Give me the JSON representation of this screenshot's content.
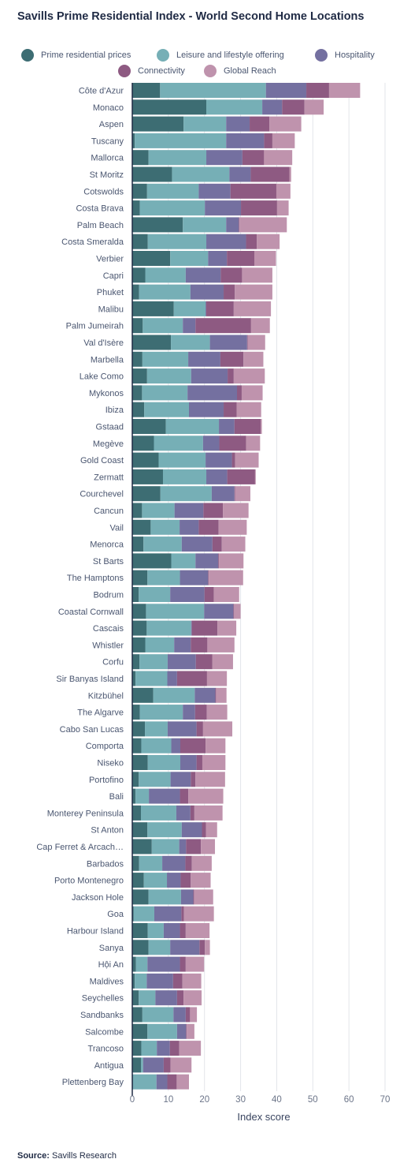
{
  "title": "Savills Prime Residential Index - World Second Home Locations",
  "source": {
    "label": "Source:",
    "text": "Savills Research"
  },
  "colors": {
    "Prime residential prices": "#3d6d73",
    "Leisure and lifestyle offering": "#76afb6",
    "Hospitality": "#7470a0",
    "Connectivity": "#8e5a82",
    "Global Reach": "#bf93ad"
  },
  "chart_data": {
    "type": "bar",
    "orientation": "horizontal",
    "stacked": true,
    "title": "Savills Prime Residential Index - World Second Home Locations",
    "xlabel": "Index score",
    "ylabel": "",
    "xlim": [
      0,
      70
    ],
    "xticks": [
      0,
      10,
      20,
      30,
      40,
      50,
      60,
      70
    ],
    "grid": true,
    "legend_position": "top",
    "categories": [
      "Côte d'Azur",
      "Monaco",
      "Aspen",
      "Tuscany",
      "Mallorca",
      "St Moritz",
      "Cotswolds",
      "Costa Brava",
      "Palm Beach",
      "Costa Smeralda",
      "Verbier",
      "Capri",
      "Phuket",
      "Malibu",
      "Palm Jumeirah",
      "Val d'Isère",
      "Marbella",
      "Lake Como",
      "Mykonos",
      "Ibiza",
      "Gstaad",
      "Megève",
      "Gold Coast",
      "Zermatt",
      "Courchevel",
      "Cancun",
      "Vail",
      "Menorca",
      "St Barts",
      "The Hamptons",
      "Bodrum",
      "Coastal Cornwall",
      "Cascais",
      "Whistler",
      "Corfu",
      "Sir Banyas Island",
      "Kitzbühel",
      "The Algarve",
      "Cabo San Lucas",
      "Comporta",
      "Niseko",
      "Portofino",
      "Bali",
      "Monterey Peninsula",
      "St Anton",
      "Cap Ferret & Arcach…",
      "Barbados",
      "Porto Montenegro",
      "Jackson Hole",
      "Goa",
      "Harbour Island",
      "Sanya",
      "Hội An",
      "Maldives",
      "Seychelles",
      "Sandbanks",
      "Salcombe",
      "Trancoso",
      "Antigua",
      "Plettenberg Bay"
    ],
    "series": [
      {
        "name": "Prime residential prices",
        "values": [
          7.7,
          20.5,
          14.2,
          0.7,
          4.5,
          11.0,
          4.1,
          2.1,
          14.0,
          4.3,
          10.5,
          3.6,
          1.9,
          11.5,
          2.9,
          10.7,
          2.8,
          4.1,
          2.7,
          3.3,
          9.3,
          6.0,
          7.3,
          8.5,
          7.8,
          2.7,
          5.1,
          3.1,
          10.8,
          4.2,
          1.8,
          3.8,
          4.0,
          3.6,
          2.0,
          0.9,
          5.8,
          2.1,
          3.5,
          2.5,
          4.3,
          1.8,
          0.9,
          2.4,
          4.2,
          5.4,
          1.9,
          3.2,
          4.5,
          0.4,
          4.3,
          4.5,
          1.0,
          0.7,
          1.8,
          2.8,
          4.2,
          2.5,
          2.4,
          0.2
        ]
      },
      {
        "name": "Leisure and lifestyle offering",
        "values": [
          29.3,
          15.5,
          11.8,
          25.3,
          16.0,
          15.9,
          14.3,
          18.0,
          12.0,
          16.2,
          10.5,
          11.2,
          14.2,
          8.8,
          11.1,
          10.8,
          12.7,
          12.2,
          12.6,
          12.4,
          14.7,
          13.6,
          13.0,
          12.0,
          14.2,
          9.0,
          8.0,
          10.6,
          6.7,
          9.0,
          8.7,
          16.1,
          12.3,
          8.0,
          7.8,
          8.8,
          11.5,
          11.9,
          6.3,
          8.3,
          9.0,
          8.8,
          3.7,
          9.8,
          9.5,
          7.6,
          6.4,
          6.4,
          9.0,
          5.7,
          4.4,
          6.0,
          3.2,
          3.3,
          4.6,
          8.6,
          8.2,
          4.3,
          0.6,
          6.5
        ]
      },
      {
        "name": "Hospitality",
        "values": [
          11.2,
          5.5,
          6.5,
          10.5,
          10.0,
          5.9,
          8.8,
          10.0,
          3.5,
          11.0,
          5.2,
          9.7,
          9.2,
          0.2,
          3.5,
          10.3,
          8.9,
          10.1,
          13.7,
          9.6,
          4.3,
          4.5,
          7.3,
          5.8,
          6.3,
          8.0,
          5.3,
          8.5,
          6.3,
          7.8,
          9.5,
          8.1,
          0.2,
          4.6,
          7.8,
          2.7,
          5.7,
          3.4,
          8.0,
          2.5,
          4.5,
          5.6,
          8.6,
          3.9,
          5.6,
          1.9,
          6.4,
          3.8,
          3.4,
          7.5,
          4.5,
          8.1,
          9.0,
          7.3,
          6.0,
          3.4,
          2.5,
          3.6,
          5.7,
          3.0
        ]
      },
      {
        "name": "Connectivity",
        "values": [
          6.3,
          6.2,
          5.5,
          2.3,
          6.0,
          10.7,
          12.7,
          10.0,
          0.2,
          3.0,
          7.6,
          5.9,
          3.1,
          7.6,
          15.4,
          0.2,
          6.4,
          1.7,
          1.3,
          3.6,
          7.3,
          7.4,
          0.9,
          7.7,
          0.2,
          5.4,
          5.5,
          2.6,
          0.2,
          0.2,
          2.6,
          0.2,
          7.1,
          4.6,
          4.6,
          8.3,
          0.2,
          3.2,
          1.8,
          7.0,
          1.6,
          1.3,
          2.3,
          1.1,
          1.1,
          4.1,
          1.8,
          2.8,
          0.2,
          0.7,
          1.6,
          1.5,
          1.6,
          2.6,
          1.8,
          1.2,
          0.2,
          2.6,
          1.9,
          2.6
        ]
      },
      {
        "name": "Global Reach",
        "values": [
          8.6,
          5.3,
          8.8,
          6.2,
          7.8,
          0.5,
          3.9,
          3.2,
          13.1,
          6.3,
          6.0,
          8.4,
          10.4,
          10.3,
          5.2,
          4.8,
          5.5,
          8.6,
          5.8,
          6.8,
          0.3,
          3.9,
          6.5,
          0.2,
          4.2,
          7.1,
          7.8,
          6.5,
          6.8,
          9.5,
          7.0,
          1.8,
          5.2,
          7.5,
          5.7,
          5.5,
          2.9,
          5.7,
          8.1,
          5.5,
          6.4,
          8.2,
          9.7,
          7.8,
          3.1,
          3.9,
          5.5,
          5.5,
          5.3,
          8.3,
          6.6,
          1.4,
          5.1,
          5.2,
          5.0,
          1.9,
          2.1,
          6.0,
          5.8,
          3.4
        ]
      }
    ]
  }
}
